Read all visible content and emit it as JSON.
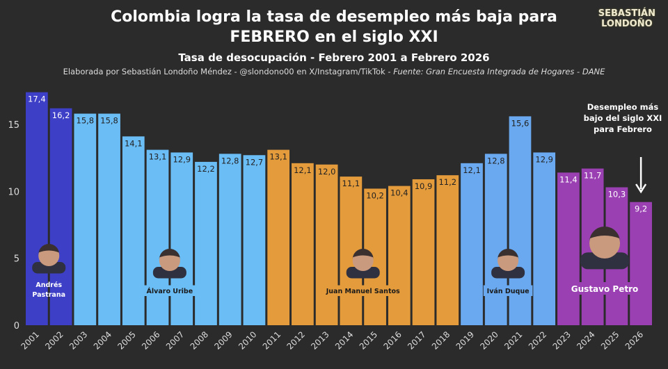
{
  "chart_data": {
    "type": "bar",
    "title": "Colombia logra la tasa de desempleo más baja para FEBRERO en el siglo XXI",
    "subtitle": "Tasa de desocupación - Febrero 2001 a Febrero 2026",
    "credit": "Elaborada por Sebastián Londoño Méndez - @slondono00 en X/Instagram/TikTok - ",
    "source": "Fuente: Gran Encuesta Integrada de Hogares - DANE",
    "categories": [
      "2001",
      "2002",
      "2003",
      "2004",
      "2005",
      "2006",
      "2007",
      "2008",
      "2009",
      "2010",
      "2011",
      "2012",
      "2013",
      "2014",
      "2015",
      "2016",
      "2017",
      "2018",
      "2019",
      "2020",
      "2021",
      "2022",
      "2023",
      "2024",
      "2025",
      "2026"
    ],
    "values": [
      17.4,
      16.2,
      15.8,
      15.8,
      14.1,
      13.1,
      12.9,
      12.2,
      12.8,
      12.7,
      13.1,
      12.1,
      12.0,
      11.1,
      10.2,
      10.4,
      10.9,
      11.2,
      12.1,
      12.8,
      15.6,
      12.9,
      11.4,
      11.7,
      10.3,
      9.2
    ],
    "value_labels": [
      "17,4",
      "16,2",
      "15,8",
      "15,8",
      "14,1",
      "13,1",
      "12,9",
      "12,2",
      "12,8",
      "12,7",
      "13,1",
      "12,1",
      "12,0",
      "11,1",
      "10,2",
      "10,4",
      "10,9",
      "11,2",
      "12,1",
      "12,8",
      "15,6",
      "12,9",
      "11,4",
      "11,7",
      "10,3",
      "9,2"
    ],
    "ylim": [
      0,
      17.4
    ],
    "yticks": [
      0,
      5,
      10,
      15
    ],
    "grid": false,
    "groups": [
      {
        "name": "Andrés Pastrana",
        "from": 0,
        "to": 1,
        "color": "#3e3fc7"
      },
      {
        "name": "Álvaro Uribe",
        "from": 2,
        "to": 9,
        "color": "#6bbdf6"
      },
      {
        "name": "Juan Manuel Santos",
        "from": 10,
        "to": 17,
        "color": "#e49b3b"
      },
      {
        "name": "Iván Duque",
        "from": 18,
        "to": 21,
        "color": "#6aa9ef"
      },
      {
        "name": "Gustavo Petro",
        "from": 22,
        "to": 25,
        "color": "#9a40b2"
      }
    ],
    "annotation": "Desempleo más bajo del siglo XXI para Febrero"
  },
  "logo": {
    "line1": "SEBASTIÁN",
    "line2": "LONDOÑO"
  }
}
